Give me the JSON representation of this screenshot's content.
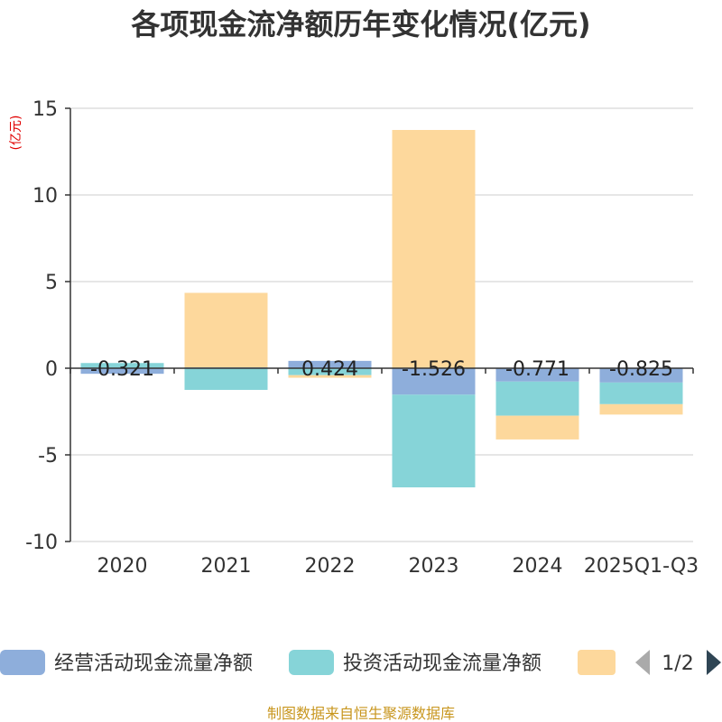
{
  "chart_data": {
    "type": "bar",
    "stacked": true,
    "title": "各项现金流净额历年变化情况(亿元)",
    "unit_label": "(亿元)",
    "categories": [
      "2020",
      "2021",
      "2022",
      "2023",
      "2024",
      "2025Q1-Q3"
    ],
    "ylim": [
      -10,
      15
    ],
    "yticks": [
      15,
      10,
      5,
      0,
      -5,
      -10
    ],
    "grid": true,
    "series": [
      {
        "name": "经营活动现金流量净额",
        "color": "#8eaedb",
        "values": [
          -0.321,
          0.05,
          0.424,
          -1.526,
          -0.771,
          -0.825
        ],
        "labels": [
          "-0.321",
          "",
          "0.424",
          "-1.526",
          "-0.771",
          "-0.825"
        ]
      },
      {
        "name": "投资活动现金流量净额",
        "color": "#86d4d8",
        "values": [
          0.3,
          -1.25,
          -0.4,
          -5.35,
          -1.97,
          -1.25
        ]
      },
      {
        "name": "",
        "color": "#fdd89c",
        "values": [
          0,
          4.3,
          -0.15,
          13.75,
          -1.37,
          -0.6
        ]
      }
    ],
    "legend": {
      "page": "1/2",
      "placement": "bottom"
    }
  },
  "source_text": "制图数据来自恒生聚源数据库"
}
